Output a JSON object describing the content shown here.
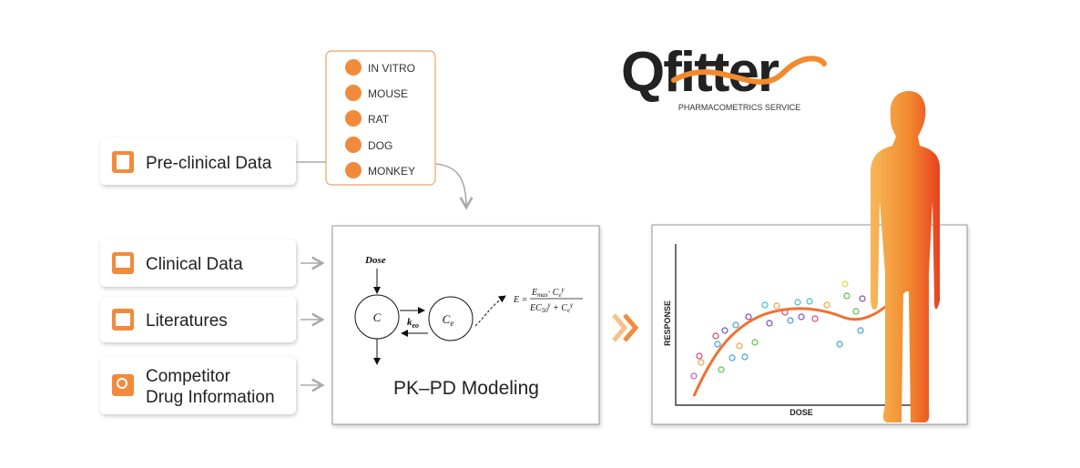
{
  "logo": {
    "name": "Qfitter",
    "tagline": "PHARMACOMETRICS SERVICE"
  },
  "sources": [
    {
      "lines": [
        "Pre-clinical Data"
      ]
    },
    {
      "lines": [
        "Clinical Data"
      ]
    },
    {
      "lines": [
        "Literatures"
      ]
    },
    {
      "lines": [
        "Competitor",
        "Drug Information"
      ]
    }
  ],
  "species": [
    "IN VITRO",
    "MOUSE",
    "RAT",
    "DOG",
    "MONKEY"
  ],
  "model": {
    "dose": "Dose",
    "central": "C",
    "rate": "k",
    "rate_sub": "eo",
    "effect": "C",
    "effect_sub": "e",
    "equation": {
      "lhs": "E =",
      "num": [
        "E",
        "max",
        "· C",
        "e",
        "γ"
      ],
      "den": [
        "EC",
        "50",
        "γ",
        " + C",
        "e",
        "γ"
      ]
    },
    "title": "PK–PD Modeling"
  },
  "plot": {
    "y_label": "RESPONSE",
    "x_label": "DOSE"
  }
}
